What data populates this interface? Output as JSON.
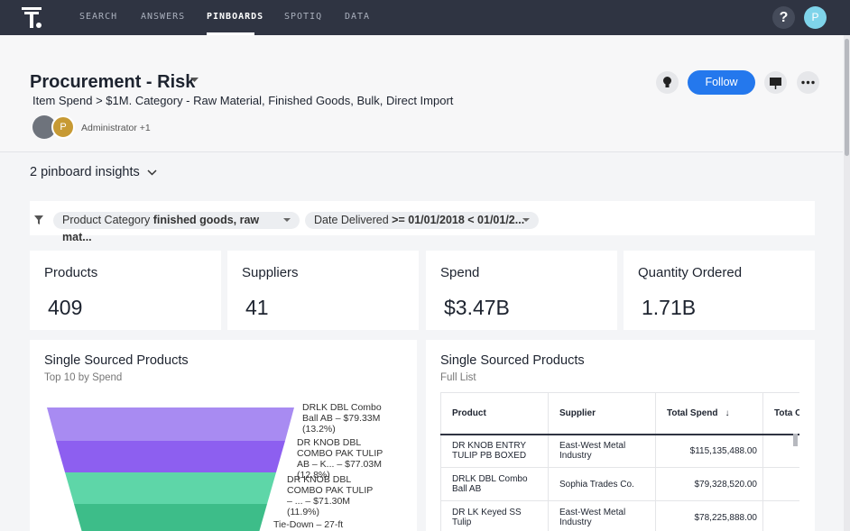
{
  "nav": {
    "items": [
      "SEARCH",
      "ANSWERS",
      "PINBOARDS",
      "SPOTIQ",
      "DATA"
    ],
    "help": "?",
    "avatar": "P"
  },
  "header": {
    "title": "Procurement - Risk",
    "subtitle": "Item Spend > $1M. Category - Raw Material, Finished Goods, Bulk, Direct Import",
    "owner_avatar": "P",
    "owner": "Administrator +1",
    "follow": "Follow"
  },
  "insights": "2 pinboard insights",
  "filters": [
    {
      "name": "Product Category",
      "value": "finished goods, raw mat..."
    },
    {
      "name": "Date Delivered",
      "value": ">= 01/01/2018 < 01/01/2..."
    }
  ],
  "kpis": [
    {
      "title": "Products",
      "value": "409"
    },
    {
      "title": "Suppliers",
      "value": "41"
    },
    {
      "title": "Spend",
      "value": "$3.47B"
    },
    {
      "title": "Quantity Ordered",
      "value": "1.71B"
    }
  ],
  "funnel": {
    "title": "Single Sourced Products",
    "subtitle": "Top 10 by Spend",
    "segments": [
      {
        "label": "DRLK DBL Combo Ball AB – $79.33M (13.2%)",
        "value": 79.33
      },
      {
        "label": "DR KNOB DBL COMBO PAK TULIP AB – K... – $77.03M (12.8%)",
        "value": 77.03
      },
      {
        "label": "DR KNOB DBL COMBO PAK TULIP – ... – $71.30M (11.9%)",
        "value": 71.3
      },
      {
        "label": "Tie-Down – 27-ft"
      }
    ]
  },
  "table": {
    "title": "Single Sourced Products",
    "subtitle": "Full List",
    "columns": [
      "Product",
      "Supplier",
      "Total Spend",
      "Tota Orde"
    ],
    "rows": [
      [
        "DR KNOB ENTRY TULIP PB BOXED",
        "East-West Metal Industry",
        "$115,135,488.00"
      ],
      [
        "DRLK DBL Combo Ball AB",
        "Sophia Trades Co.",
        "$79,328,520.00"
      ],
      [
        "DR LK Keyed SS Tulip",
        "East-West Metal Industry",
        "$78,225,888.00"
      ]
    ]
  }
}
